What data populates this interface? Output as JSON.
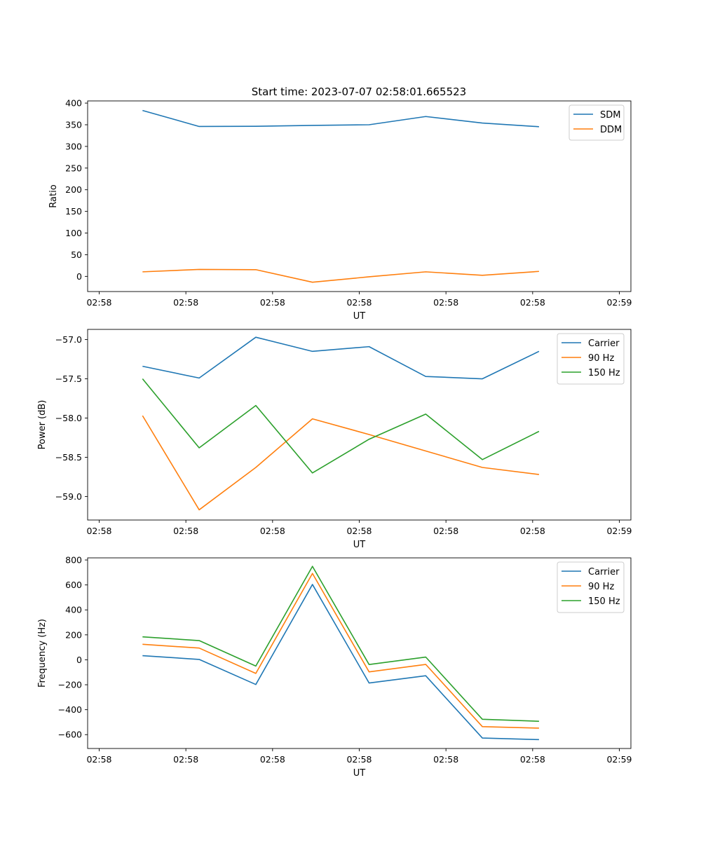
{
  "figure": {
    "title": "Start time: 2023-07-07 02:58:01.665523"
  },
  "chart_data": [
    {
      "type": "line",
      "ylabel": "Ratio",
      "xlabel": "UT",
      "xlim": [
        0,
        9.4
      ],
      "xticks": [
        0.2,
        1.7,
        3.2,
        4.7,
        6.2,
        7.7,
        9.2
      ],
      "xtick_labels": [
        "02:58",
        "02:58",
        "02:58",
        "02:58",
        "02:58",
        "02:58",
        "02:59"
      ],
      "ylim": [
        -35,
        405
      ],
      "yticks": [
        0,
        50,
        100,
        150,
        200,
        250,
        300,
        350,
        400
      ],
      "ytick_labels": [
        "0",
        "50",
        "100",
        "150",
        "200",
        "250",
        "300",
        "350",
        "400"
      ],
      "legend_position": "top-right",
      "x": [
        0.95,
        1.93,
        2.91,
        3.89,
        4.87,
        5.85,
        6.83,
        7.81
      ],
      "series": [
        {
          "name": "SDM",
          "color": "#1f77b4",
          "values": [
            383,
            346,
            346.5,
            348.5,
            350,
            369,
            354,
            345.5
          ]
        },
        {
          "name": "DDM",
          "color": "#ff7f0e",
          "values": [
            10.5,
            16,
            15.5,
            -13.5,
            -1,
            10.5,
            2.5,
            11.5
          ]
        }
      ]
    },
    {
      "type": "line",
      "ylabel": "Power (dB)",
      "xlabel": "UT",
      "xlim": [
        0,
        9.4
      ],
      "xticks": [
        0.2,
        1.7,
        3.2,
        4.7,
        6.2,
        7.7,
        9.2
      ],
      "xtick_labels": [
        "02:58",
        "02:58",
        "02:58",
        "02:58",
        "02:58",
        "02:58",
        "02:59"
      ],
      "ylim": [
        -59.3,
        -56.87
      ],
      "yticks": [
        -59.0,
        -58.5,
        -58.0,
        -57.5,
        -57.0
      ],
      "ytick_labels": [
        "−59.0",
        "−58.5",
        "−58.0",
        "−57.5",
        "−57.0"
      ],
      "legend_position": "top-right",
      "x": [
        0.95,
        1.93,
        2.91,
        3.89,
        4.87,
        5.85,
        6.83,
        7.81
      ],
      "series": [
        {
          "name": "Carrier",
          "color": "#1f77b4",
          "values": [
            -57.34,
            -57.49,
            -56.97,
            -57.15,
            -57.09,
            -57.47,
            -57.5,
            -57.15
          ]
        },
        {
          "name": "90 Hz",
          "color": "#ff7f0e",
          "values": [
            -57.97,
            -59.17,
            -58.63,
            -58.01,
            -58.21,
            -58.42,
            -58.63,
            -58.72
          ]
        },
        {
          "name": "150 Hz",
          "color": "#2ca02c",
          "values": [
            -57.5,
            -58.38,
            -57.84,
            -58.7,
            -58.27,
            -57.95,
            -58.53,
            -58.17
          ]
        }
      ]
    },
    {
      "type": "line",
      "ylabel": "Frequency (Hz)",
      "xlabel": "UT",
      "xlim": [
        0,
        9.4
      ],
      "xticks": [
        0.2,
        1.7,
        3.2,
        4.7,
        6.2,
        7.7,
        9.2
      ],
      "xtick_labels": [
        "02:58",
        "02:58",
        "02:58",
        "02:58",
        "02:58",
        "02:58",
        "02:59"
      ],
      "ylim": [
        -711,
        817
      ],
      "yticks": [
        -600,
        -400,
        -200,
        0,
        200,
        400,
        600,
        800
      ],
      "ytick_labels": [
        "−600",
        "−400",
        "−200",
        "0",
        "200",
        "400",
        "600",
        "800"
      ],
      "legend_position": "top-right",
      "x": [
        0.95,
        1.93,
        2.91,
        3.89,
        4.87,
        5.85,
        6.83,
        7.81
      ],
      "series": [
        {
          "name": "Carrier",
          "color": "#1f77b4",
          "values": [
            33,
            3,
            -198,
            604,
            -186,
            -128,
            -627,
            -640
          ]
        },
        {
          "name": "90 Hz",
          "color": "#ff7f0e",
          "values": [
            124,
            94,
            -109,
            692,
            -97,
            -37,
            -536,
            -548
          ]
        },
        {
          "name": "150 Hz",
          "color": "#2ca02c",
          "values": [
            184,
            154,
            -50,
            749,
            -38,
            22,
            -477,
            -493
          ]
        }
      ]
    }
  ]
}
